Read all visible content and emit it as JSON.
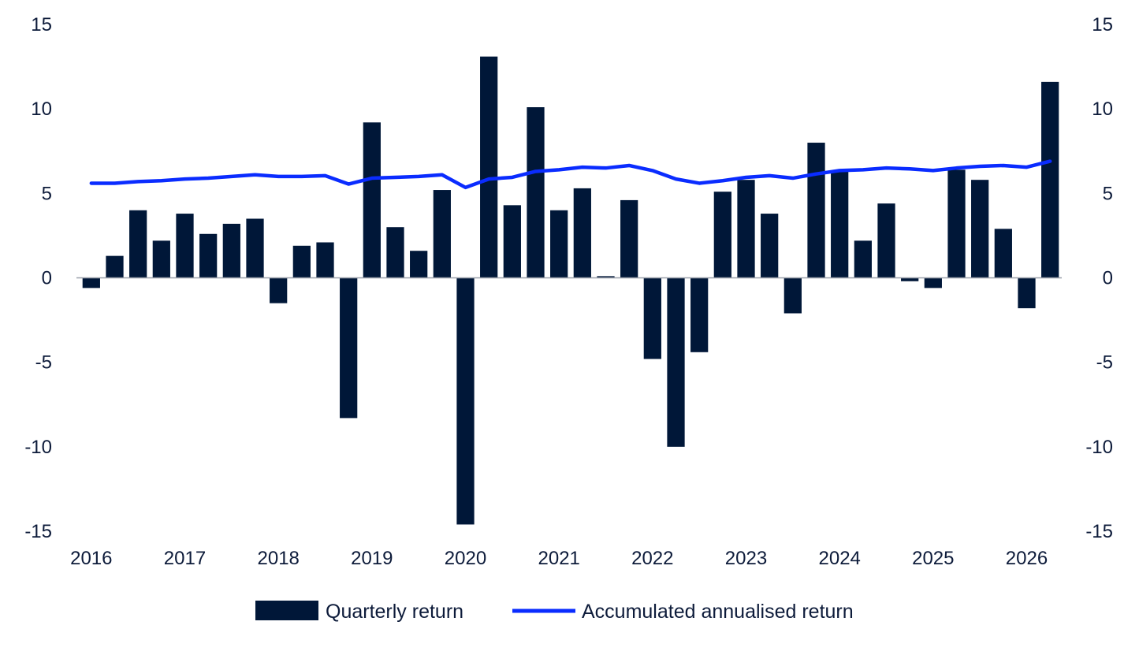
{
  "chart_data": {
    "type": "bar",
    "title": "",
    "xlabel": "",
    "ylabel": "",
    "ylim": [
      -15,
      15
    ],
    "y_ticks": [
      15,
      10,
      5,
      0,
      -5,
      -10,
      -15
    ],
    "y_ticks_right": [
      15,
      10,
      5,
      0,
      -5,
      -10,
      -15
    ],
    "x_tick_labels": [
      "2016",
      "2017",
      "2018",
      "2019",
      "2020",
      "2021",
      "2022",
      "2023",
      "2024",
      "2025",
      "2026"
    ],
    "grid": false,
    "legend_position": "bottom",
    "colors": {
      "bars": "#001738",
      "line": "#0a2cff",
      "zero_line": "#9aa0aa",
      "text": "#0d1b3a"
    },
    "x": [
      "2016 Q1",
      "2016 Q2",
      "2016 Q3",
      "2016 Q4",
      "2017 Q1",
      "2017 Q2",
      "2017 Q3",
      "2017 Q4",
      "2018 Q1",
      "2018 Q2",
      "2018 Q3",
      "2018 Q4",
      "2019 Q1",
      "2019 Q2",
      "2019 Q3",
      "2019 Q4",
      "2020 Q1",
      "2020 Q2",
      "2020 Q3",
      "2020 Q4",
      "2021 Q1",
      "2021 Q2",
      "2021 Q3",
      "2021 Q4",
      "2022 Q1",
      "2022 Q2",
      "2022 Q3",
      "2022 Q4",
      "2023 Q1",
      "2023 Q2",
      "2023 Q3",
      "2023 Q4",
      "2024 Q1",
      "2024 Q2",
      "2024 Q3",
      "2024 Q4",
      "2025 Q1",
      "2025 Q2",
      "2025 Q3",
      "2025 Q4",
      "2026 Q1",
      "2026 Q2"
    ],
    "series": [
      {
        "name": "Quarterly return",
        "type": "bar",
        "values": [
          -0.6,
          1.3,
          4.0,
          2.2,
          3.8,
          2.6,
          3.2,
          3.5,
          -1.5,
          1.9,
          2.1,
          -8.3,
          9.2,
          3.0,
          1.6,
          5.2,
          -14.6,
          13.1,
          4.3,
          10.1,
          4.0,
          5.3,
          0.1,
          4.6,
          -4.8,
          -10.0,
          -4.4,
          5.1,
          5.8,
          3.8,
          -2.1,
          8.0,
          6.3,
          2.2,
          4.4,
          -0.2,
          -0.6,
          6.4,
          5.8,
          2.9,
          -1.8,
          11.6
        ]
      },
      {
        "name": "Accumulated annualised return",
        "type": "line",
        "values": [
          5.6,
          5.6,
          5.7,
          5.75,
          5.85,
          5.9,
          6.0,
          6.1,
          6.0,
          6.0,
          6.05,
          5.55,
          5.9,
          5.95,
          6.0,
          6.1,
          5.35,
          5.85,
          5.95,
          6.3,
          6.4,
          6.55,
          6.5,
          6.65,
          6.35,
          5.85,
          5.6,
          5.75,
          5.95,
          6.05,
          5.9,
          6.15,
          6.35,
          6.4,
          6.5,
          6.45,
          6.35,
          6.5,
          6.6,
          6.65,
          6.55,
          6.9
        ]
      }
    ]
  },
  "legend": {
    "bar_label": "Quarterly return",
    "line_label": "Accumulated annualised return"
  }
}
